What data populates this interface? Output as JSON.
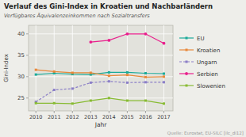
{
  "chart_data": {
    "type": "line",
    "title": "Verlauf des Gini-Index in Kroatien und Nachbarländern",
    "subtitle": "Verfügbares Äquivalenzeinkommen nach Sozialtransfers",
    "x_label": "Jahr",
    "y_label": "Gini-Index",
    "source": "Quelle: Eurostat, EU-SILC [ilc_di12]",
    "x": [
      2010,
      2011,
      2012,
      2013,
      2014,
      2015,
      2016,
      2017
    ],
    "xlim": [
      2009.6,
      2017.5
    ],
    "xticks": [
      2010,
      2011,
      2012,
      2013,
      2014,
      2015,
      2016,
      2017
    ],
    "ylim": [
      22,
      42
    ],
    "yticks": [
      25,
      30,
      35,
      40
    ],
    "grid": true,
    "legend": "right",
    "series": [
      {
        "name": "EU",
        "color": "#1aaa99",
        "marker": "square",
        "line_style": "solid",
        "values": [
          30.5,
          30.8,
          30.6,
          30.5,
          31.0,
          31.0,
          30.8,
          30.7
        ]
      },
      {
        "name": "Kroatien",
        "color": "#e8883a",
        "marker": "square",
        "line_style": "solid",
        "values": [
          31.6,
          31.2,
          30.9,
          30.9,
          30.2,
          30.4,
          29.9,
          30.0
        ]
      },
      {
        "name": "Ungarn",
        "color": "#8b7fc7",
        "marker": "square",
        "line_style": "dashed",
        "values": [
          24.1,
          26.9,
          27.2,
          28.6,
          28.9,
          28.6,
          28.7,
          28.7
        ]
      },
      {
        "name": "Serbien",
        "color": "#e91e8c",
        "marker": "circle",
        "line_style": "solid",
        "values": [
          null,
          null,
          null,
          38.1,
          38.5,
          40.0,
          40.0,
          37.8
        ]
      },
      {
        "name": "Slowenien",
        "color": "#88bb33",
        "marker": "square",
        "line_style": "solid",
        "values": [
          23.8,
          23.8,
          23.7,
          24.4,
          25.0,
          24.4,
          24.4,
          23.7
        ]
      }
    ]
  }
}
